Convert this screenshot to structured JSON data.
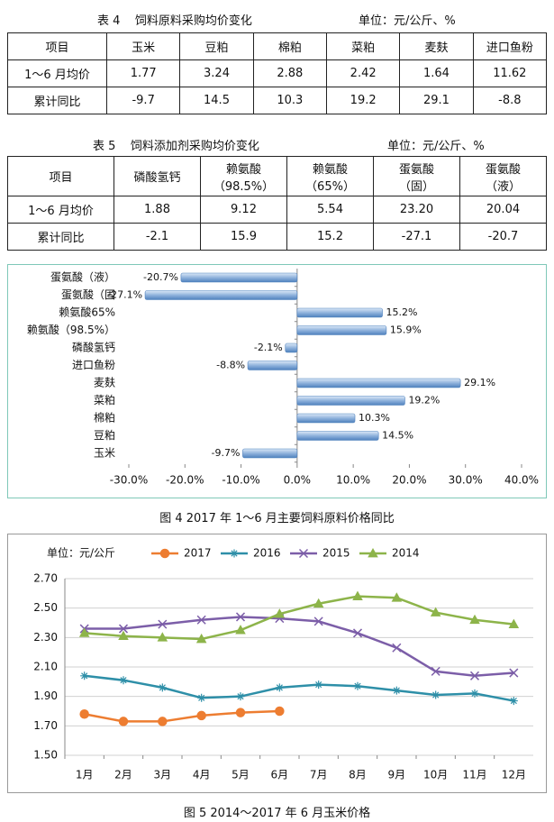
{
  "table4": {
    "title": "表 4    饲料原料采购均价变化",
    "unit": "单位：元/公斤、%",
    "header": [
      "项目",
      "玉米",
      "豆粕",
      "棉粕",
      "菜粕",
      "麦麸",
      "进口鱼粉"
    ],
    "rows": [
      [
        "1～6 月均价",
        "1.77",
        "3.24",
        "2.88",
        "2.42",
        "1.64",
        "11.62"
      ],
      [
        "累计同比",
        "-9.7",
        "14.5",
        "10.3",
        "19.2",
        "29.1",
        "-8.8"
      ]
    ]
  },
  "table5": {
    "title": "表 5    饲料添加剂采购均价变化",
    "unit": "单位：元/公斤、%",
    "header": [
      "项目",
      "磷酸氢钙",
      "赖氨酸\n（98.5%）",
      "赖氨酸\n（65%）",
      "蛋氨酸\n（固）",
      "蛋氨酸\n（液）"
    ],
    "rows": [
      [
        "1～6 月均价",
        "1.88",
        "9.12",
        "5.54",
        "23.20",
        "20.04"
      ],
      [
        "累计同比",
        "-2.1",
        "15.9",
        "15.2",
        "-27.1",
        "-20.7"
      ]
    ]
  },
  "chart_data": [
    {
      "type": "hbar",
      "caption": "图 4   2017 年 1～6 月主要饲料原料价格同比",
      "categories": [
        "蛋氨酸（液）",
        "蛋氨酸（固",
        "赖氨酸65%",
        "赖氨酸（98.5%）",
        "磷酸氢钙",
        "进口鱼粉",
        "麦麸",
        "菜粕",
        "棉粕",
        "豆粕",
        "玉米"
      ],
      "values": [
        -20.7,
        -27.1,
        15.2,
        15.9,
        -2.1,
        -8.8,
        29.1,
        19.2,
        10.3,
        14.5,
        -9.7
      ],
      "value_labels": [
        "-20.7%",
        "-27.1%",
        "15.2%",
        "15.9%",
        "-2.1%",
        "-8.8%",
        "29.1%",
        "19.2%",
        "10.3%",
        "14.5%",
        "-9.7%"
      ],
      "color": "#4f81bd",
      "xlim": [
        -30,
        40
      ],
      "xticks": [
        {
          "value": -30,
          "label": "-30.0%"
        },
        {
          "value": -20,
          "label": "-20.0%"
        },
        {
          "value": -10,
          "label": "-10.0%"
        },
        {
          "value": 0,
          "label": "0.0%"
        },
        {
          "value": 10,
          "label": "10.0%"
        },
        {
          "value": 20,
          "label": "20.0%"
        },
        {
          "value": 30,
          "label": "30.0%"
        },
        {
          "value": 40,
          "label": "40.0%"
        }
      ],
      "grid": false
    },
    {
      "type": "line",
      "caption": "图 5   2014～2017 年 6 月玉米价格",
      "y_label": "单位：元/公斤",
      "categories": [
        "1月",
        "2月",
        "3月",
        "4月",
        "5月",
        "6月",
        "7月",
        "8月",
        "9月",
        "10月",
        "11月",
        "12月"
      ],
      "series": [
        {
          "name": "2017",
          "color": "#ed7d31",
          "marker": "circle",
          "values": [
            1.78,
            1.73,
            1.73,
            1.77,
            1.79,
            1.8,
            null,
            null,
            null,
            null,
            null,
            null
          ]
        },
        {
          "name": "2016",
          "color": "#2e8fa8",
          "marker": "star",
          "values": [
            2.04,
            2.01,
            1.96,
            1.89,
            1.9,
            1.96,
            1.98,
            1.97,
            1.94,
            1.91,
            1.92,
            1.87
          ]
        },
        {
          "name": "2015",
          "color": "#7c5ea8",
          "marker": "x",
          "values": [
            2.36,
            2.36,
            2.39,
            2.42,
            2.44,
            2.43,
            2.41,
            2.33,
            2.23,
            2.07,
            2.04,
            2.06
          ]
        },
        {
          "name": "2014",
          "color": "#8db44a",
          "marker": "triangle",
          "values": [
            2.33,
            2.31,
            2.3,
            2.29,
            2.35,
            2.46,
            2.53,
            2.58,
            2.57,
            2.47,
            2.42,
            2.39
          ]
        }
      ],
      "ylim": [
        1.5,
        2.7
      ],
      "yticks": [
        {
          "value": 1.5,
          "label": "1.50"
        },
        {
          "value": 1.7,
          "label": "1.70"
        },
        {
          "value": 1.9,
          "label": "1.90"
        },
        {
          "value": 2.1,
          "label": "2.10"
        },
        {
          "value": 2.3,
          "label": "2.30"
        },
        {
          "value": 2.5,
          "label": "2.50"
        },
        {
          "value": 2.7,
          "label": "2.70"
        }
      ],
      "grid": true
    }
  ]
}
